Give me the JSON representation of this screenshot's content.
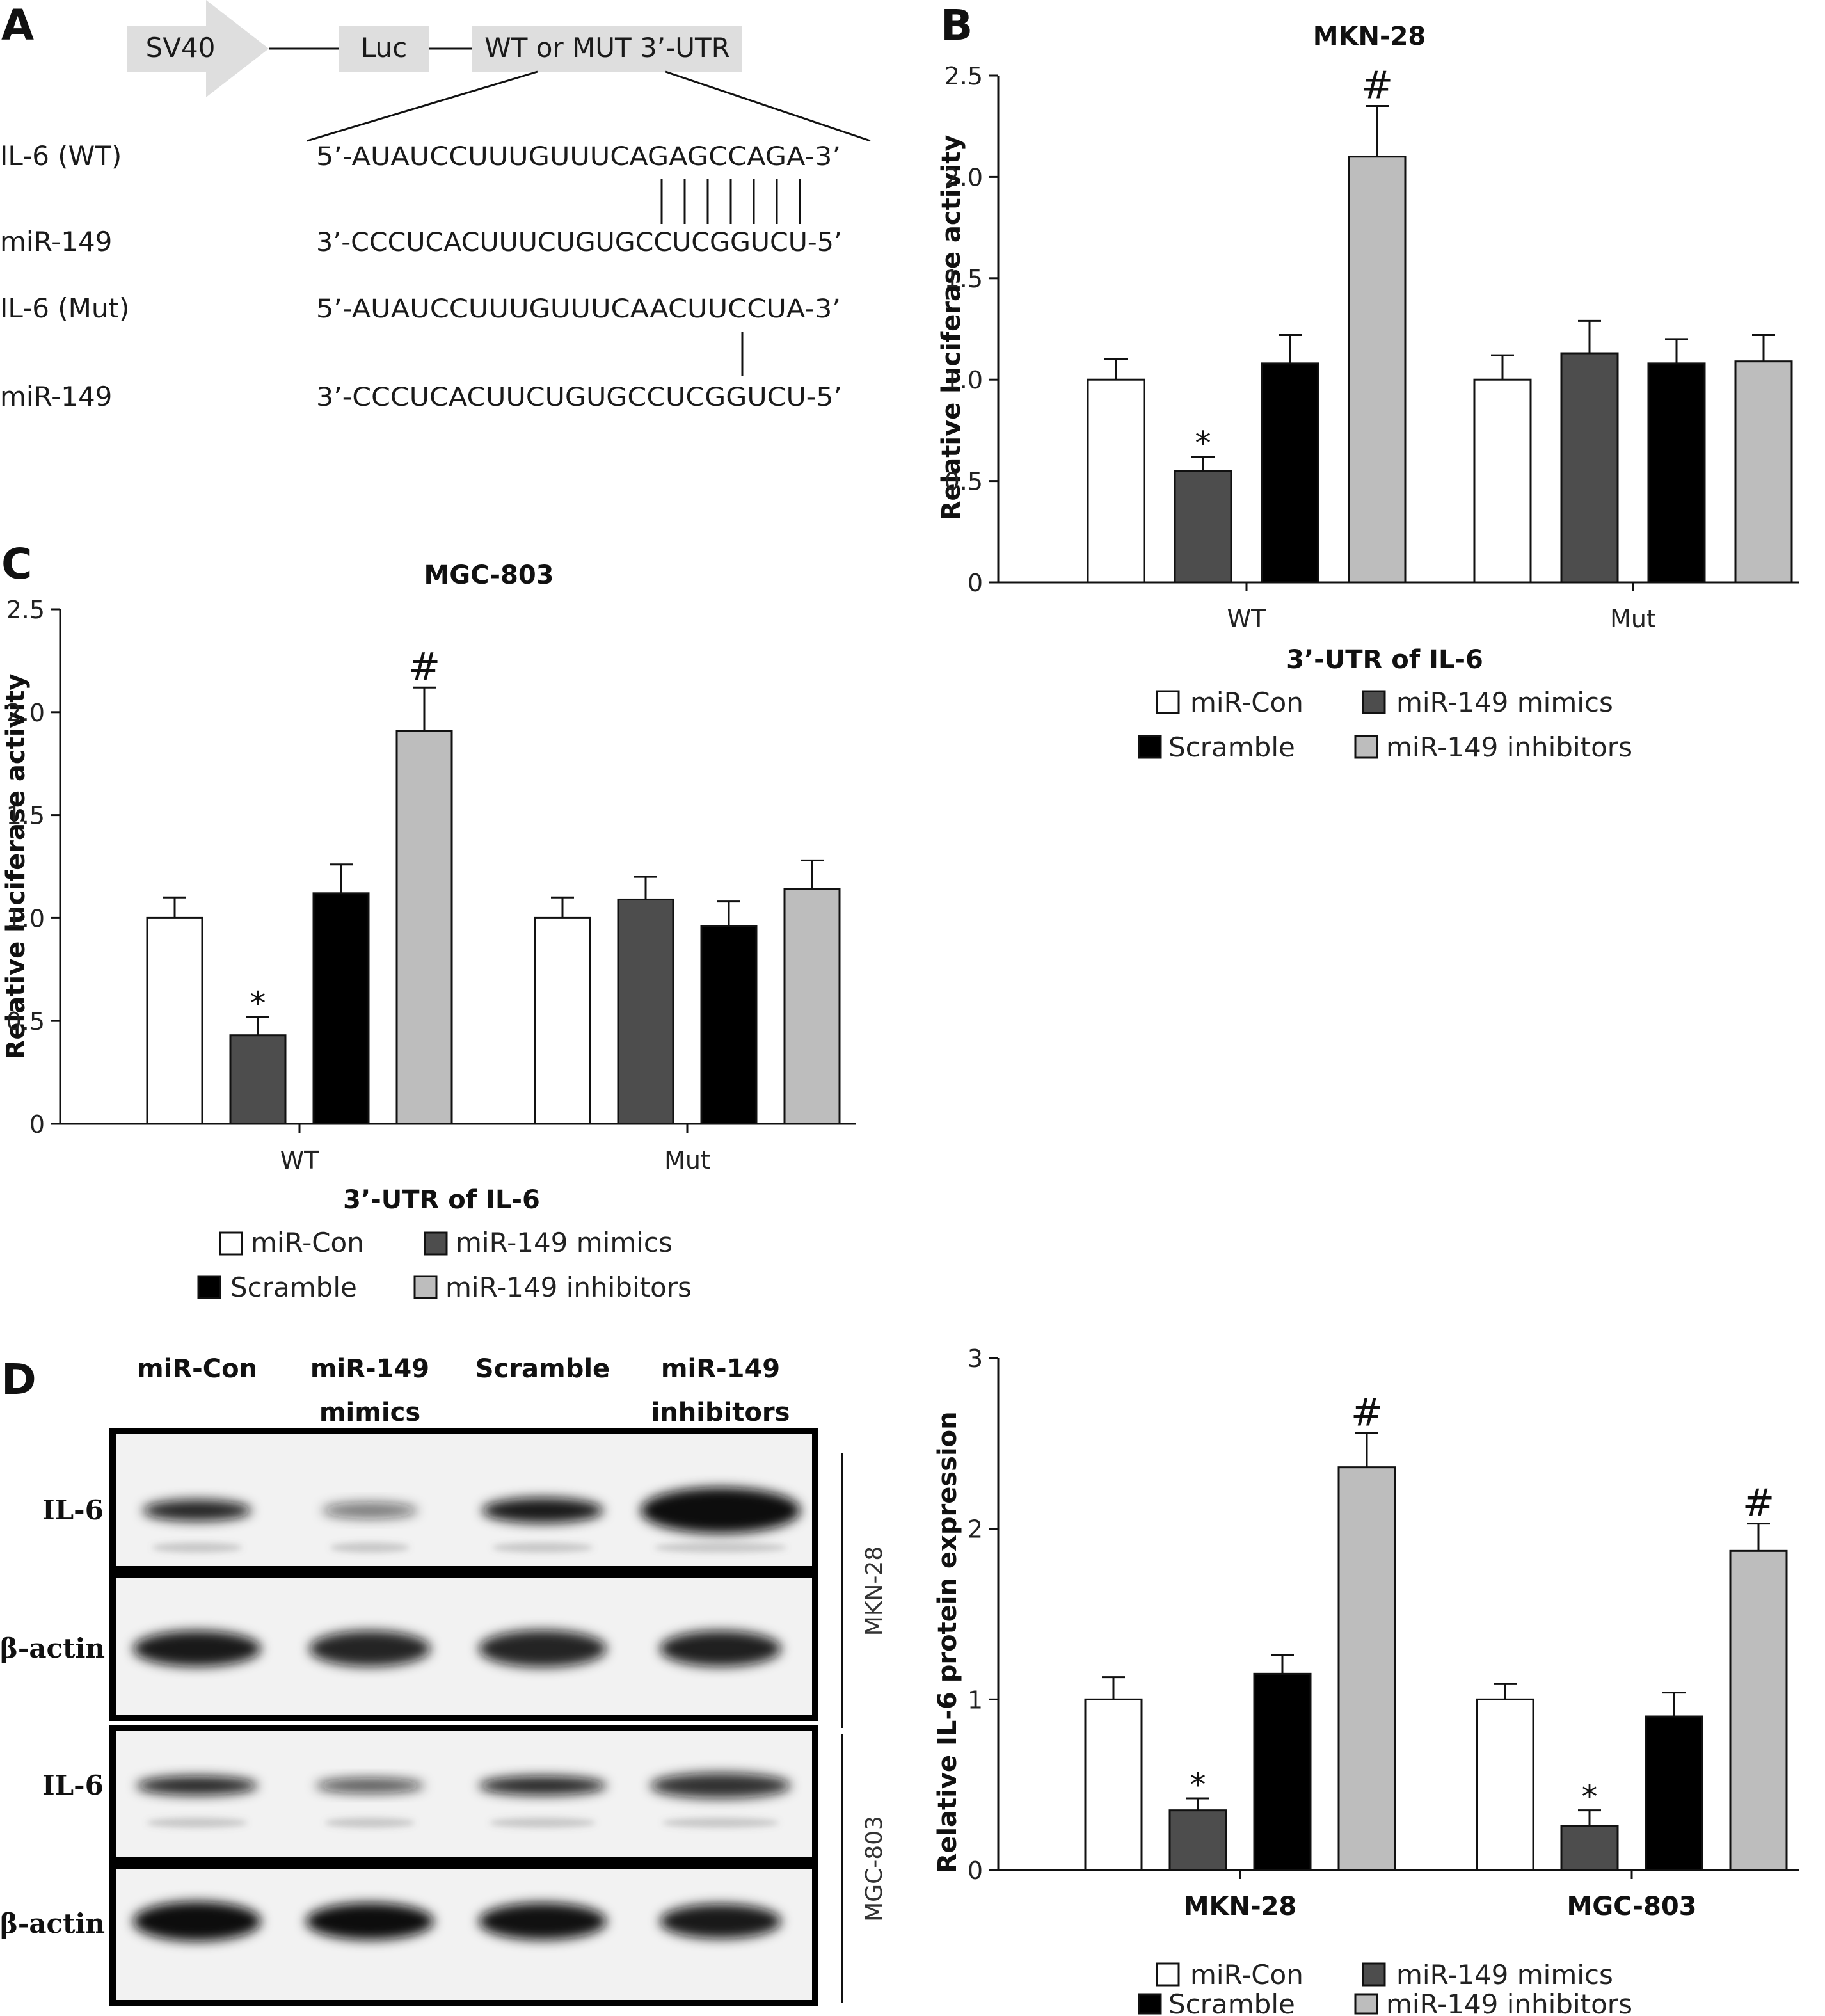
{
  "panels": {
    "A": {
      "letter": "A",
      "construct": {
        "promoter": "SV40",
        "reporter": "Luc",
        "utr": "WT or MUT 3’-UTR"
      },
      "rows": [
        {
          "label": "IL-6 (WT)",
          "sequence": "5’-AUAUCCUUUGUUUCAGAGCCAGA-3’"
        },
        {
          "label": "miR-149",
          "sequence": "3’-CCCUCACUUUCUGUGCCUCGGUCU-5’"
        },
        {
          "label": "IL-6 (Mut)",
          "sequence": "5’-AUAUCCUUUGUUUCAACUUCCUA-3’"
        },
        {
          "label": "miR-149",
          "sequence": "3’-CCCUCACUUCUGUGCCUCGGUCU-5’"
        }
      ]
    },
    "B": {
      "letter": "B"
    },
    "C": {
      "letter": "C"
    },
    "D": {
      "letter": "D",
      "columns": [
        {
          "line1": "miR-Con",
          "line2": ""
        },
        {
          "line1": "miR-149",
          "line2": "mimics"
        },
        {
          "line1": "Scramble",
          "line2": ""
        },
        {
          "line1": "miR-149",
          "line2": "inhibitors"
        }
      ],
      "rows": [
        "IL-6",
        "β-actin",
        "IL-6",
        "β-actin"
      ],
      "cell_lines": [
        "MKN-28",
        "MGC-803"
      ]
    }
  },
  "colors": {
    "miR-Con": "#ffffff",
    "miR-149 mimics": "#4d4d4d",
    "Scramble": "#000000",
    "miR-149 inhibitors": "#bdbdbd"
  },
  "chart_data": [
    {
      "type": "bar",
      "panel": "B",
      "title": "MKN-28",
      "xlabel": "3’-UTR of IL-6",
      "ylabel": "Relative luciferase activity",
      "categories": [
        "WT",
        "Mut"
      ],
      "ylim": [
        0,
        2.5
      ],
      "yticks": [
        "0",
        "0.5",
        "1.0",
        "1.5",
        "2.0",
        "2.5"
      ],
      "series": [
        {
          "name": "miR-Con",
          "values": [
            1.0,
            1.0
          ],
          "errors": [
            0.1,
            0.12
          ],
          "marks": [
            "",
            ""
          ]
        },
        {
          "name": "miR-149 mimics",
          "values": [
            0.55,
            1.13
          ],
          "errors": [
            0.07,
            0.16
          ],
          "marks": [
            "*",
            ""
          ]
        },
        {
          "name": "Scramble",
          "values": [
            1.08,
            1.08
          ],
          "errors": [
            0.14,
            0.12
          ],
          "marks": [
            "",
            ""
          ]
        },
        {
          "name": "miR-149 inhibitors",
          "values": [
            2.1,
            1.09
          ],
          "errors": [
            0.25,
            0.13
          ],
          "marks": [
            "#",
            ""
          ]
        }
      ],
      "legend": [
        "miR-Con",
        "miR-149 mimics",
        "Scramble",
        "miR-149 inhibitors"
      ]
    },
    {
      "type": "bar",
      "panel": "C",
      "title": "MGC-803",
      "xlabel": "3’-UTR of IL-6",
      "ylabel": "Relative luciferase activity",
      "categories": [
        "WT",
        "Mut"
      ],
      "ylim": [
        0,
        2.5
      ],
      "yticks": [
        "0",
        "0.5",
        "1.0",
        "1.5",
        "2.0",
        "2.5"
      ],
      "series": [
        {
          "name": "miR-Con",
          "values": [
            1.0,
            1.0
          ],
          "errors": [
            0.1,
            0.1
          ],
          "marks": [
            "",
            ""
          ]
        },
        {
          "name": "miR-149 mimics",
          "values": [
            0.43,
            1.09
          ],
          "errors": [
            0.09,
            0.11
          ],
          "marks": [
            "*",
            ""
          ]
        },
        {
          "name": "Scramble",
          "values": [
            1.12,
            0.96
          ],
          "errors": [
            0.14,
            0.12
          ],
          "marks": [
            "",
            ""
          ]
        },
        {
          "name": "miR-149 inhibitors",
          "values": [
            1.91,
            1.14
          ],
          "errors": [
            0.21,
            0.14
          ],
          "marks": [
            "#",
            ""
          ]
        }
      ],
      "legend": [
        "miR-Con",
        "miR-149 mimics",
        "Scramble",
        "miR-149 inhibitors"
      ]
    },
    {
      "type": "bar",
      "panel": "D",
      "title": "",
      "xlabel": "",
      "ylabel": "Relative IL-6 protein expression",
      "categories": [
        "MKN-28",
        "MGC-803"
      ],
      "ylim": [
        0,
        3
      ],
      "yticks": [
        "0",
        "1",
        "2",
        "3"
      ],
      "series": [
        {
          "name": "miR-Con",
          "values": [
            1.0,
            1.0
          ],
          "errors": [
            0.13,
            0.09
          ],
          "marks": [
            "",
            ""
          ]
        },
        {
          "name": "miR-149 mimics",
          "values": [
            0.35,
            0.26
          ],
          "errors": [
            0.07,
            0.09
          ],
          "marks": [
            "*",
            "*"
          ]
        },
        {
          "name": "Scramble",
          "values": [
            1.15,
            0.9
          ],
          "errors": [
            0.11,
            0.14
          ],
          "marks": [
            "",
            ""
          ]
        },
        {
          "name": "miR-149 inhibitors",
          "values": [
            2.36,
            1.87
          ],
          "errors": [
            0.2,
            0.16
          ],
          "marks": [
            "#",
            "#"
          ]
        }
      ],
      "legend": [
        "miR-Con",
        "miR-149 mimics",
        "Scramble",
        "miR-149 inhibitors"
      ]
    }
  ]
}
